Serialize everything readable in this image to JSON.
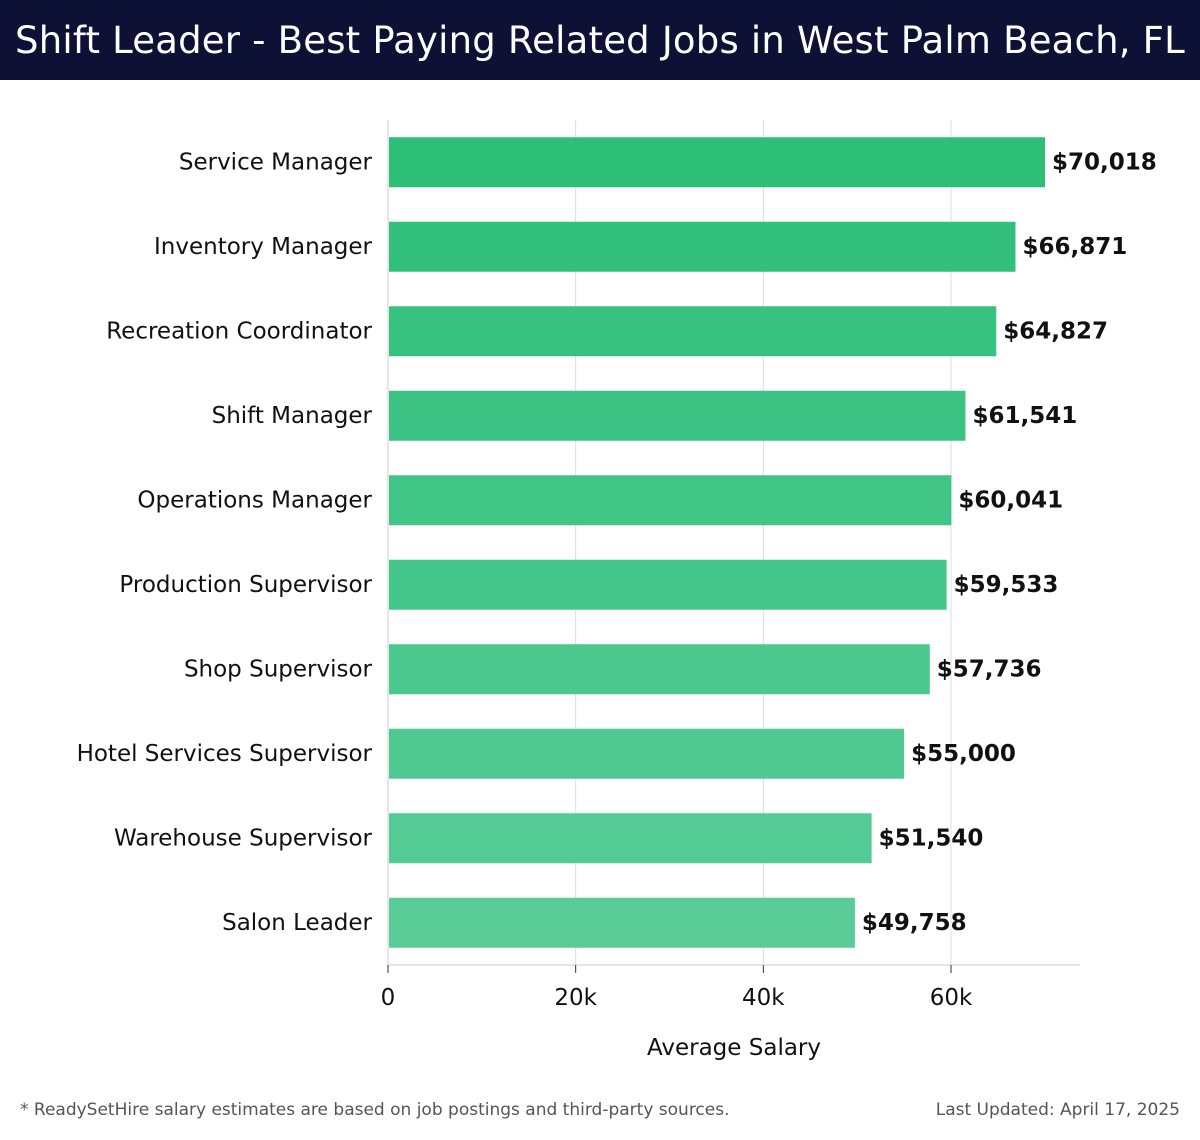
{
  "header": {
    "title": "Shift Leader - Best Paying Related Jobs in West Palm Beach, FL"
  },
  "chart_data": {
    "type": "bar",
    "orientation": "horizontal",
    "categories": [
      "Service Manager",
      "Inventory Manager",
      "Recreation Coordinator",
      "Shift Manager",
      "Operations Manager",
      "Production Supervisor",
      "Shop Supervisor",
      "Hotel Services Supervisor",
      "Warehouse Supervisor",
      "Salon Leader"
    ],
    "values": [
      70018,
      66871,
      64827,
      61541,
      60041,
      59533,
      57736,
      55000,
      51540,
      49758
    ],
    "value_labels": [
      "$70,018",
      "$66,871",
      "$64,827",
      "$61,541",
      "$60,041",
      "$59,533",
      "$57,736",
      "$55,000",
      "$51,540",
      "$49,758"
    ],
    "xlabel": "Average Salary",
    "xlim": [
      0,
      73500
    ],
    "xticks": [
      0,
      20000,
      40000,
      60000
    ],
    "xtick_labels": [
      "0",
      "20k",
      "40k",
      "60k"
    ],
    "grid": true,
    "bar_color_top": "#2dbf78",
    "bar_color_bottom": "#59cc98"
  },
  "footer": {
    "note": "* ReadySetHire salary estimates are based on job postings and third-party sources.",
    "updated": "Last Updated: April 17, 2025"
  },
  "colors": {
    "header_bg": "#0d1136",
    "grid": "#dddddd",
    "axis": "#cccccc"
  }
}
